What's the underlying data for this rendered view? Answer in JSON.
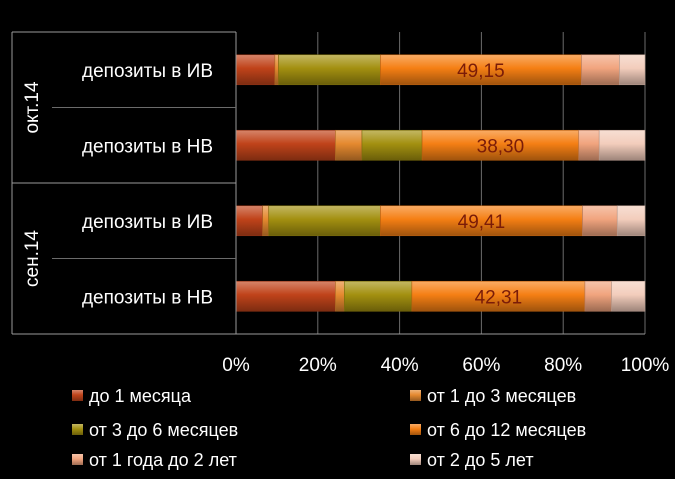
{
  "chart_data": {
    "type": "bar",
    "orientation": "horizontal",
    "stacked": "percent",
    "xlim": [
      0,
      100
    ],
    "x_ticks": [
      "0%",
      "20%",
      "40%",
      "60%",
      "80%",
      "100%"
    ],
    "grid": true,
    "legend_position": "bottom",
    "groups": [
      {
        "label": "окт.14",
        "categories": [
          "депозиты в ИВ",
          "депозиты в НВ"
        ]
      },
      {
        "label": "сен.14",
        "categories": [
          "депозиты в ИВ",
          "депозиты в НВ"
        ]
      }
    ],
    "rows": [
      {
        "group": "окт.14",
        "category": "депозиты в ИВ",
        "values": [
          9.5,
          0.9,
          24.9,
          49.15,
          9.3,
          6.25
        ],
        "label": "49,15"
      },
      {
        "group": "окт.14",
        "category": "депозиты в НВ",
        "values": [
          24.3,
          6.5,
          14.7,
          38.3,
          5.0,
          11.2
        ],
        "label": "38,30"
      },
      {
        "group": "сен.14",
        "category": "депозиты в ИВ",
        "values": [
          6.5,
          1.5,
          27.3,
          49.41,
          8.5,
          6.79
        ],
        "label": "49,41"
      },
      {
        "group": "сен.14",
        "category": "депозиты в НВ",
        "values": [
          24.3,
          2.2,
          16.5,
          42.31,
          6.5,
          8.19
        ],
        "label": "42,31"
      }
    ],
    "series": [
      {
        "name": "до 1 месяца",
        "color": "#c0431a"
      },
      {
        "name": "от 1 до 3 месяцев",
        "color": "#e5892f"
      },
      {
        "name": "от 3 до 6 месяцев",
        "color": "#a39010"
      },
      {
        "name": "от 6 до 12 месяцев",
        "color": "#f57f14"
      },
      {
        "name": "от 1 года до 2 лет",
        "color": "#f1a47e"
      },
      {
        "name": "от 2 до 5 лет",
        "color": "#f3cdbc"
      }
    ]
  }
}
